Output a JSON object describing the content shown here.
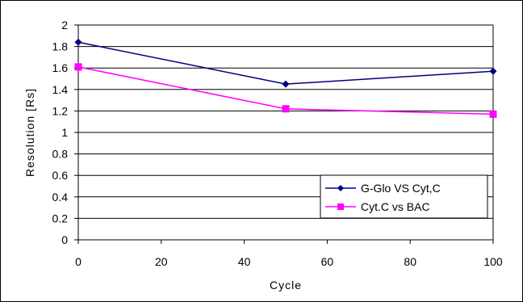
{
  "chart_data": {
    "type": "line",
    "title": "",
    "xlabel": "Cycle",
    "ylabel": "Resolution [Rs]",
    "xlim": [
      0,
      100
    ],
    "ylim": [
      0,
      2
    ],
    "xticks": [
      0,
      20,
      40,
      60,
      80,
      100
    ],
    "yticks": [
      0,
      0.2,
      0.4,
      0.6,
      0.8,
      1,
      1.2,
      1.4,
      1.6,
      1.8,
      2
    ],
    "grid": "horizontal",
    "legend_position": "bottom-right",
    "series": [
      {
        "name": "G-Glo VS Cyt,C",
        "color": "#000080",
        "marker": "diamond",
        "points": [
          [
            0,
            1.84
          ],
          [
            50,
            1.45
          ],
          [
            100,
            1.57
          ]
        ]
      },
      {
        "name": "Cyt.C vs BAC",
        "color": "#ff00ff",
        "marker": "square",
        "points": [
          [
            0,
            1.61
          ],
          [
            50,
            1.22
          ],
          [
            100,
            1.17
          ]
        ]
      }
    ]
  }
}
